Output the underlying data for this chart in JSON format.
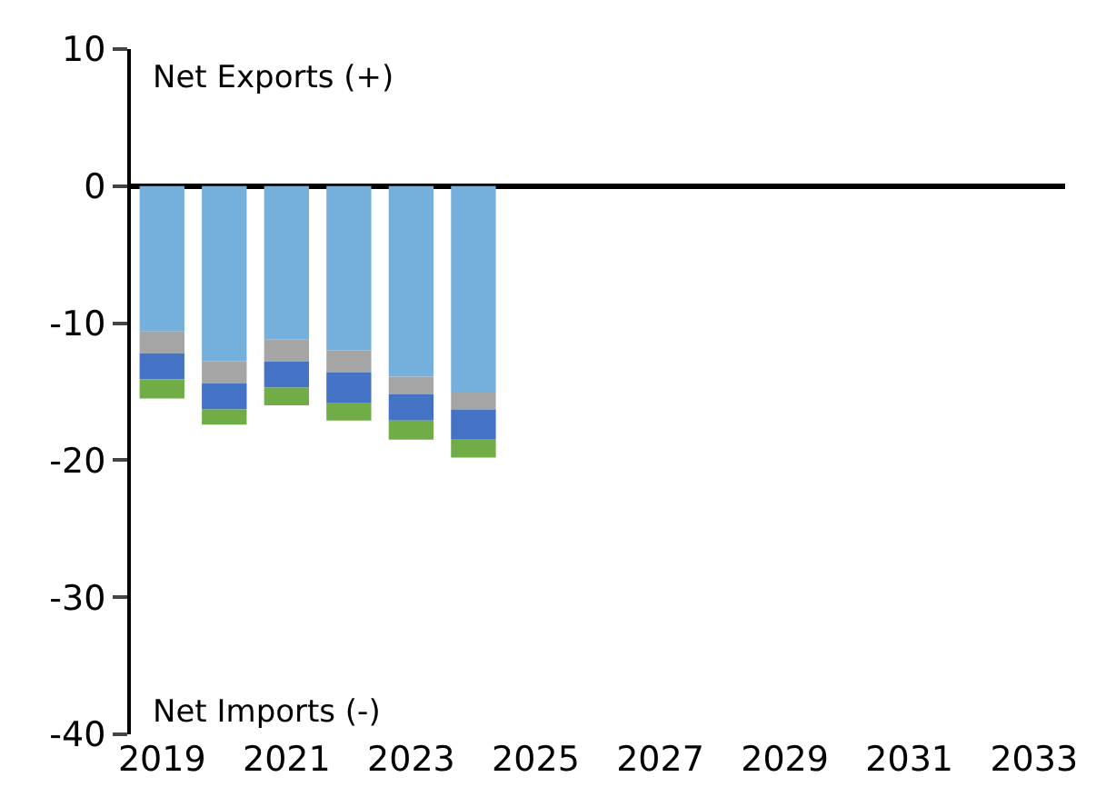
{
  "chart_data": {
    "type": "bar",
    "stacked": true,
    "categories": [
      "2019",
      null,
      "2021",
      null,
      "2023",
      null,
      "2025",
      null,
      "2027",
      null,
      "2029",
      null,
      "2031",
      null,
      "2033"
    ],
    "series": [
      {
        "color": "#75b0dd",
        "values": [
          -10.6,
          -12.8,
          -11.2,
          -12.0,
          -13.9,
          -15.0,
          null,
          null,
          null,
          null,
          null,
          null,
          null,
          null,
          null
        ]
      },
      {
        "color": "#a5a5a5",
        "values": [
          -1.6,
          -1.6,
          -1.6,
          -1.6,
          -1.3,
          -1.3,
          null,
          null,
          null,
          null,
          null,
          null,
          null,
          null,
          null
        ]
      },
      {
        "color": "#4472c4",
        "values": [
          -1.9,
          -1.9,
          -1.9,
          -2.2,
          -1.9,
          -2.2,
          null,
          null,
          null,
          null,
          null,
          null,
          null,
          null,
          null
        ]
      },
      {
        "color": "#70ad47",
        "values": [
          -1.4,
          -1.1,
          -1.3,
          -1.3,
          -1.4,
          -1.3,
          null,
          null,
          null,
          null,
          null,
          null,
          null,
          null,
          null
        ]
      }
    ],
    "ylim": [
      -40,
      10
    ],
    "yticks": [
      -40,
      -30,
      -20,
      -10,
      0,
      10
    ],
    "annotations": [
      "Net Exports (+)",
      "Net Imports (-)"
    ]
  }
}
